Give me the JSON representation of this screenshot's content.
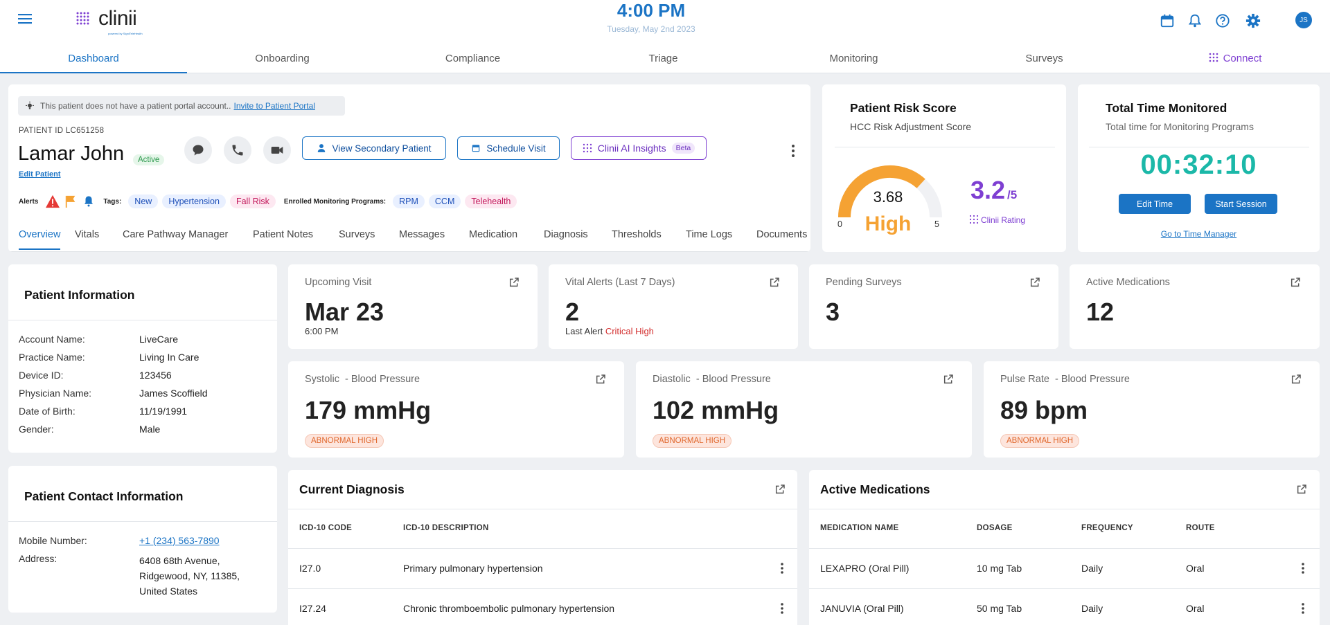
{
  "header": {
    "logo_text": "clinii",
    "logo_subtext": "powered by SigniTeleHealth",
    "time": "4:00 PM",
    "date": "Tuesday, May 2nd 2023",
    "avatar_initials": "JS"
  },
  "nav": {
    "tabs": [
      "Dashboard",
      "Onboarding",
      "Compliance",
      "Triage",
      "Monitoring",
      "Surveys",
      "Connect"
    ]
  },
  "patient": {
    "notice": "This patient does not have a patient portal account..",
    "notice_link": "Invite to Patient Portal",
    "id_label": "PATIENT ID LC651258",
    "name": "Lamar John",
    "status": "Active",
    "edit_link": "Edit Patient",
    "alerts_label": "Alerts",
    "tags_label": "Tags:",
    "tags": [
      "New",
      "Hypertension",
      "Fall Risk"
    ],
    "programs_label": "Enrolled Monitoring Programs:",
    "programs": [
      "RPM",
      "CCM",
      "Telehealth"
    ],
    "buttons": {
      "secondary": "View Secondary Patient",
      "schedule": "Schedule Visit",
      "ai": "Clinii AI Insights",
      "ai_badge": "Beta"
    },
    "subtabs": [
      "Overview",
      "Vitals",
      "Care Pathway Manager",
      "Patient Notes",
      "Surveys",
      "Messages",
      "Medication",
      "Diagnosis",
      "Thresholds",
      "Time Logs",
      "Documents"
    ]
  },
  "risk": {
    "title": "Patient Risk Score",
    "subtitle": "HCC Risk Adjustment Score",
    "score": "3.68",
    "level": "High",
    "min": "0",
    "max": "5",
    "gauge_fraction": 0.736,
    "rating": "3.2",
    "rating_max": "/5",
    "rating_label": "Clinii Rating"
  },
  "time_monitored": {
    "title": "Total Time Monitored",
    "subtitle": "Total time for Monitoring Programs",
    "value": "00:32:10",
    "edit_btn": "Edit Time",
    "start_btn": "Start Session",
    "link": "Go to Time Manager"
  },
  "patient_info": {
    "title": "Patient Information",
    "rows": [
      {
        "label": "Account Name:",
        "value": "LiveCare"
      },
      {
        "label": "Practice Name:",
        "value": "Living In Care"
      },
      {
        "label": "Device ID:",
        "value": "123456"
      },
      {
        "label": "Physician Name:",
        "value": "James Scoffield"
      },
      {
        "label": "Date of Birth:",
        "value": "11/19/1991"
      },
      {
        "label": "Gender:",
        "value": "Male"
      }
    ]
  },
  "contact": {
    "title": "Patient Contact Information",
    "mobile_label": "Mobile Number:",
    "mobile": "+1 (234) 563-7890",
    "address_label": "Address:",
    "address_lines": [
      "6408 68th Avenue,",
      "Ridgewood, NY, 11385,",
      "United States"
    ]
  },
  "stats": {
    "upcoming": {
      "title": "Upcoming Visit",
      "value": "Mar 23",
      "sub": "6:00 PM"
    },
    "vital_alerts": {
      "title": "Vital Alerts (Last 7 Days)",
      "value": "2",
      "sub_prefix": "Last Alert",
      "sub_highlight": "Critical High"
    },
    "surveys": {
      "title": "Pending Surveys",
      "value": "3"
    },
    "medications": {
      "title": "Active Medications",
      "value": "12"
    }
  },
  "vitals": [
    {
      "name": "Systolic",
      "group": "- Blood Pressure",
      "value": "179 mmHg",
      "flag": "ABNORMAL HIGH"
    },
    {
      "name": "Diastolic",
      "group": "- Blood Pressure",
      "value": "102 mmHg",
      "flag": "ABNORMAL HIGH"
    },
    {
      "name": "Pulse Rate",
      "group": "- Blood Pressure",
      "value": "89 bpm",
      "flag": "ABNORMAL HIGH"
    }
  ],
  "diagnosis": {
    "title": "Current Diagnosis",
    "columns": [
      "ICD-10 CODE",
      "ICD-10 DESCRIPTION"
    ],
    "rows": [
      {
        "code": "I27.0",
        "desc": "Primary pulmonary hypertension"
      },
      {
        "code": "I27.24",
        "desc": "Chronic thromboembolic pulmonary hypertension"
      }
    ]
  },
  "medications": {
    "title": "Active Medications",
    "columns": [
      "MEDICATION NAME",
      "DOSAGE",
      "FREQUENCY",
      "ROUTE"
    ],
    "rows": [
      {
        "name": "LEXAPRO (Oral Pill)",
        "dosage": "10 mg Tab",
        "frequency": "Daily",
        "route": "Oral"
      },
      {
        "name": "JANUVIA (Oral Pill)",
        "dosage": "50 mg Tab",
        "frequency": "Daily",
        "route": "Oral"
      }
    ]
  },
  "colors": {
    "primary": "#1b74c5",
    "accent_purple": "#7e3fd2",
    "risk_orange": "#f5a233",
    "timer_teal": "#1bb8a8",
    "critical_red": "#d32f2f"
  }
}
